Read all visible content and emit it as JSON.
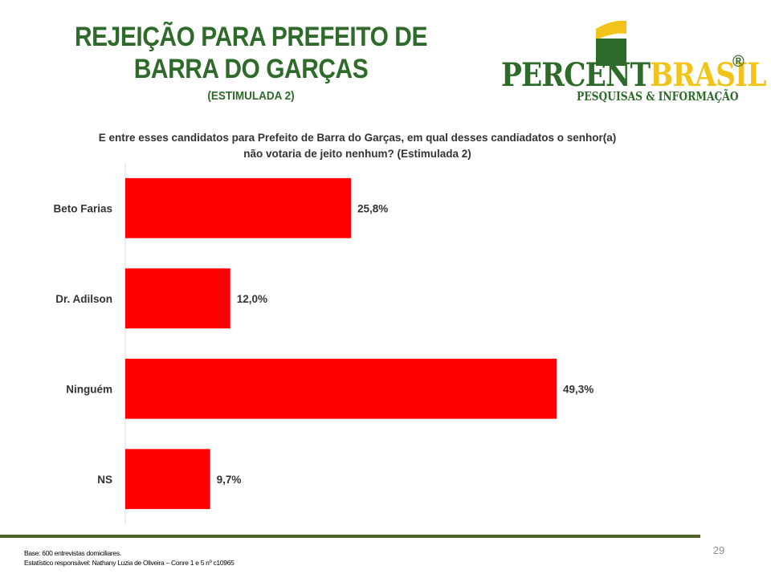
{
  "header": {
    "title_line1": "REJEIÇÃO PARA PREFEITO DE",
    "title_line2": "BARRA DO GARÇAS",
    "subtitle": "(ESTIMULADA 2)"
  },
  "logo": {
    "word_part1": "PERCENT",
    "word_part2": "BRASIL",
    "registered": "®",
    "tagline": "PESQUISAS & INFORMAÇÃO",
    "colors": {
      "green": "#2e6b2a",
      "yellow": "#f2c318"
    }
  },
  "question": {
    "line1": "E entre esses candidatos para Prefeito de Barra do Garças, em qual desses candiadatos o senhor(a)",
    "line2": "não votaria de jeito nenhum? (Estimulada 2)"
  },
  "chart_data": {
    "type": "bar",
    "orientation": "horizontal",
    "categories": [
      "Beto Farias",
      "Dr. Adilson",
      "Ninguém",
      "NS"
    ],
    "values": [
      25.8,
      12.0,
      49.3,
      9.7
    ],
    "labels": [
      "25,8%",
      "12,0%",
      "49,3%",
      "9,7%"
    ],
    "xlim": [
      0,
      60
    ],
    "grid": false,
    "bar_color": "#ff0000"
  },
  "footer": {
    "base": "Base: 600 entrevistas domiciliares.",
    "statistician": "Estatístico responsável: Nathany Luzia de Oliveira – Conre 1 e 5 nº c10965",
    "page_number": "29",
    "rule_color": "#4f6228"
  }
}
